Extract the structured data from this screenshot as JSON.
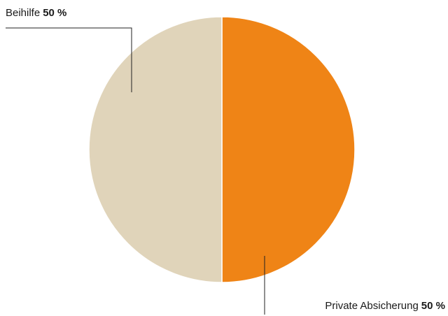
{
  "chart_data": {
    "type": "pie",
    "slices": [
      {
        "label": "Private Absicherung",
        "value": 50,
        "value_text": "50 %",
        "color": "#ef8416"
      },
      {
        "label": "Beihilfe",
        "value": 50,
        "value_text": "50 %",
        "color": "#e0d4ba"
      }
    ],
    "start": "12 o'clock",
    "direction": "clockwise",
    "legend": "none",
    "labels": "outside, with leader lines"
  }
}
